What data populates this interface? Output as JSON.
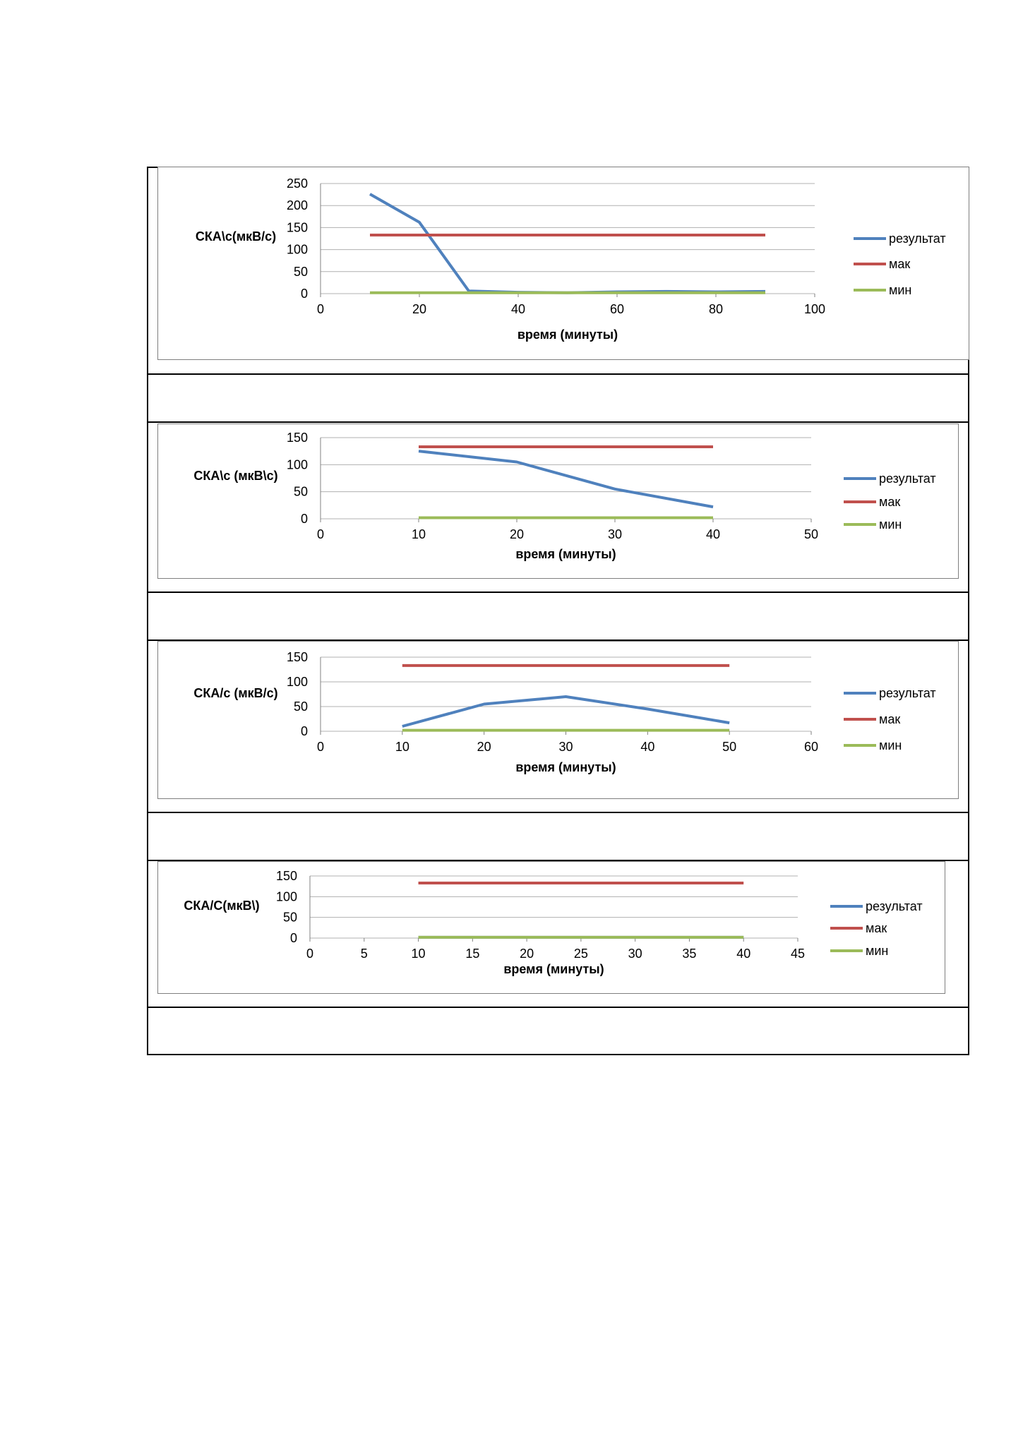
{
  "colors": {
    "result": "#4f81bd",
    "max": "#c0504d",
    "min": "#9bbb59",
    "grid": "#b0b0b0"
  },
  "chart_data": [
    {
      "type": "line",
      "xlabel": "время (минуты)",
      "ylabel": "СКА\\с(мкВ/с)",
      "xlim": [
        0,
        100
      ],
      "ylim": [
        0,
        250
      ],
      "xticks": [
        0,
        20,
        40,
        60,
        80,
        100
      ],
      "yticks": [
        0,
        50,
        100,
        150,
        200,
        250
      ],
      "legend_position": "right",
      "series": [
        {
          "name": "результат",
          "x": [
            10,
            20,
            30,
            40,
            50,
            60,
            70,
            80,
            90
          ],
          "values": [
            226,
            162,
            6,
            3,
            2,
            4,
            5,
            4,
            5
          ]
        },
        {
          "name": "мак",
          "x": [
            10,
            90
          ],
          "values": [
            133,
            133
          ]
        },
        {
          "name": "мин",
          "x": [
            10,
            90
          ],
          "values": [
            2,
            2
          ]
        }
      ]
    },
    {
      "type": "line",
      "xlabel": "время (минуты)",
      "ylabel": "СКА\\с (мкВ\\с)",
      "xlim": [
        0,
        50
      ],
      "ylim": [
        0,
        150
      ],
      "xticks": [
        0,
        10,
        20,
        30,
        40,
        50
      ],
      "yticks": [
        0,
        50,
        100,
        150
      ],
      "legend_position": "right",
      "series": [
        {
          "name": "результат",
          "x": [
            10,
            20,
            30,
            40
          ],
          "values": [
            125,
            105,
            55,
            22
          ]
        },
        {
          "name": "мак",
          "x": [
            10,
            40
          ],
          "values": [
            133,
            133
          ]
        },
        {
          "name": "мин",
          "x": [
            10,
            40
          ],
          "values": [
            2,
            2
          ]
        }
      ]
    },
    {
      "type": "line",
      "xlabel": "время (минуты)",
      "ylabel": "СКА/с (мкВ/с)",
      "xlim": [
        0,
        60
      ],
      "ylim": [
        0,
        150
      ],
      "xticks": [
        0,
        10,
        20,
        30,
        40,
        50,
        60
      ],
      "yticks": [
        0,
        50,
        100,
        150
      ],
      "legend_position": "right",
      "series": [
        {
          "name": "результат",
          "x": [
            10,
            20,
            30,
            40,
            50
          ],
          "values": [
            10,
            55,
            70,
            45,
            17
          ]
        },
        {
          "name": "мак",
          "x": [
            10,
            50
          ],
          "values": [
            133,
            133
          ]
        },
        {
          "name": "мин",
          "x": [
            10,
            50
          ],
          "values": [
            2,
            2
          ]
        }
      ]
    },
    {
      "type": "line",
      "xlabel": "время (минуты)",
      "ylabel": "СКА/С(мкВ\\)",
      "xlim": [
        0,
        45
      ],
      "ylim": [
        0,
        150
      ],
      "xticks": [
        0,
        5,
        10,
        15,
        20,
        25,
        30,
        35,
        40,
        45
      ],
      "yticks": [
        0,
        50,
        100,
        150
      ],
      "legend_position": "right",
      "series": [
        {
          "name": "результат",
          "x": [
            10,
            40
          ],
          "values": [
            2,
            2
          ]
        },
        {
          "name": "мак",
          "x": [
            10,
            40
          ],
          "values": [
            133,
            133
          ]
        },
        {
          "name": "мин",
          "x": [
            10,
            40
          ],
          "values": [
            2,
            2
          ]
        }
      ]
    }
  ]
}
